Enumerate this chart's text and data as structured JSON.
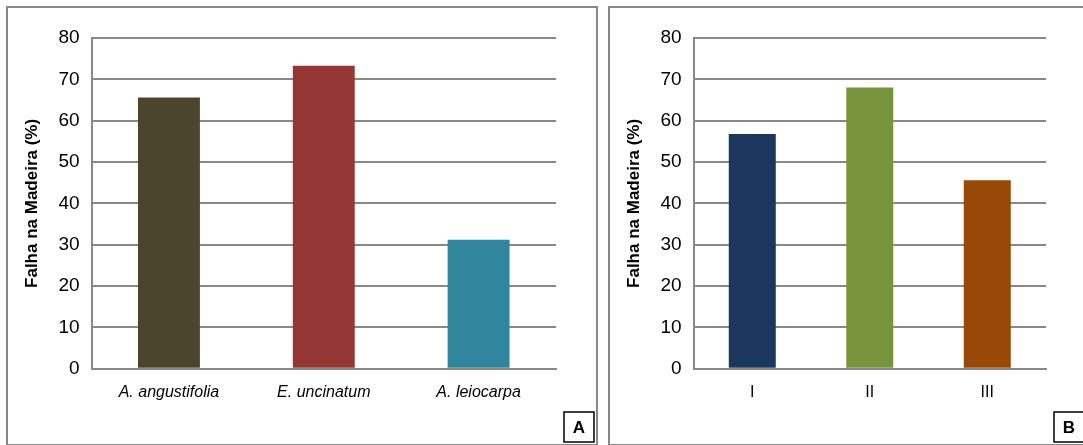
{
  "chart_data": [
    {
      "type": "bar",
      "ylabel": "Falha na Madeira (%)",
      "categories": [
        "A. angustifolia",
        "E. uncinatum",
        "A. leiocarpa"
      ],
      "values": [
        65.6,
        73.3,
        31.2
      ],
      "colors": [
        "#4b452d",
        "#953735",
        "#31859c"
      ],
      "ylim": [
        0,
        80
      ],
      "yticks": [
        0,
        10,
        20,
        30,
        40,
        50,
        60,
        70,
        80
      ],
      "grid": "y",
      "legend": false,
      "annotations": [
        "A"
      ]
    },
    {
      "type": "bar",
      "ylabel": "Falha na Madeira (%)",
      "categories": [
        "I",
        "II",
        "III"
      ],
      "values": [
        56.8,
        68.0,
        45.6
      ],
      "colors": [
        "#1b375d",
        "#77933c",
        "#984807"
      ],
      "ylim": [
        0,
        80
      ],
      "yticks": [
        0,
        10,
        20,
        30,
        40,
        50,
        60,
        70,
        80
      ],
      "grid": "y",
      "legend": false,
      "annotations": [
        "B"
      ]
    }
  ]
}
